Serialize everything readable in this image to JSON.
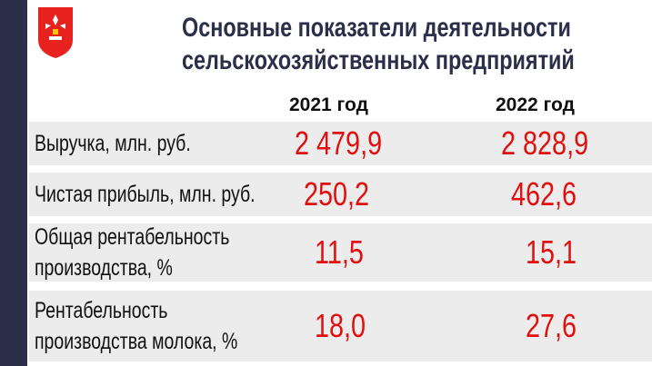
{
  "header": {
    "title_lines": [
      "Основные показатели деятельности",
      "сельскохозяйственных предприятий"
    ]
  },
  "table": {
    "columns": [
      "2021 год",
      "2022 год"
    ],
    "rows": [
      {
        "label_lines": [
          "Выручка, млн. руб."
        ],
        "values": [
          "2 479,9",
          "2 828,9"
        ]
      },
      {
        "label_lines": [
          "Чистая прибыль, млн. руб."
        ],
        "values": [
          "250,2",
          "462,6"
        ]
      },
      {
        "label_lines": [
          "Общая рентабельность",
          "производства, %"
        ],
        "values": [
          "11,5",
          "15,1"
        ]
      },
      {
        "label_lines": [
          "Рентабельность",
          "производства молока, %"
        ],
        "values": [
          "18,0",
          "27,6"
        ]
      }
    ]
  }
}
